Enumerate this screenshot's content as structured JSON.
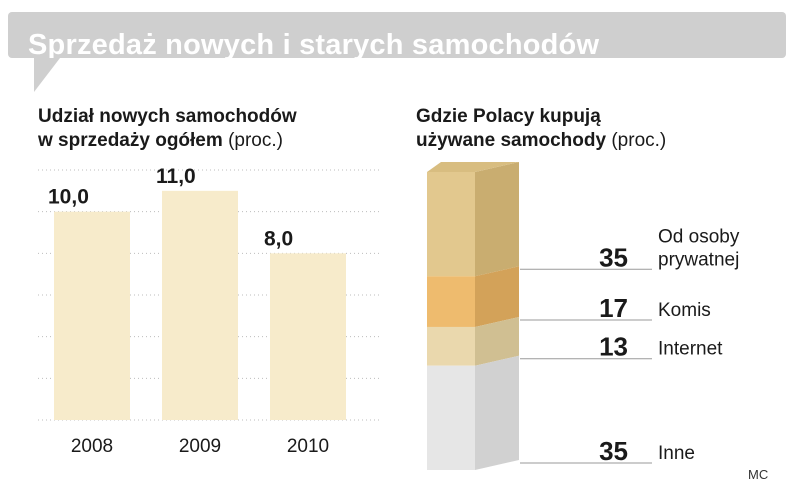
{
  "banner": {
    "title": "Sprzedaż nowych i starych samochodów"
  },
  "colors": {
    "banner": "#cfcfcf",
    "bar": "#f7ebcb",
    "grid": "#bdbdbd"
  },
  "credit": "MC",
  "left_chart": {
    "subtitle_line1": "Udział nowych samochodów",
    "subtitle_line2": "w sprzedaży ogółem",
    "unit": "(proc.)"
  },
  "right_chart": {
    "subtitle_line1": "Gdzie Polacy kupują",
    "subtitle_line2": "używane samochody",
    "unit": "(proc.)"
  },
  "chart_data": [
    {
      "type": "bar",
      "categories": [
        "2008",
        "2009",
        "2010"
      ],
      "values": [
        10.0,
        11.0,
        8.0
      ],
      "value_labels": [
        "10,0",
        "11,0",
        "8,0"
      ],
      "ylim": [
        0,
        12
      ],
      "grid": true,
      "colors": [
        "#f7ebcb"
      ]
    },
    {
      "type": "bar",
      "stacked": true,
      "categories": [
        "Od osoby prywatnej",
        "Komis",
        "Internet",
        "Inne"
      ],
      "values": [
        35,
        17,
        13,
        35
      ],
      "label_lines": [
        [
          "Od osoby",
          "prywatnej"
        ],
        [
          "Komis"
        ],
        [
          "Internet"
        ],
        [
          "Inne"
        ]
      ],
      "colors": [
        "#e2c88e",
        "#eebb6e",
        "#ead8ad",
        "#e6e6e6"
      ],
      "side_colors": [
        "#c9ad70",
        "#d3a259",
        "#d0bf92",
        "#d1d1d1"
      ]
    }
  ]
}
